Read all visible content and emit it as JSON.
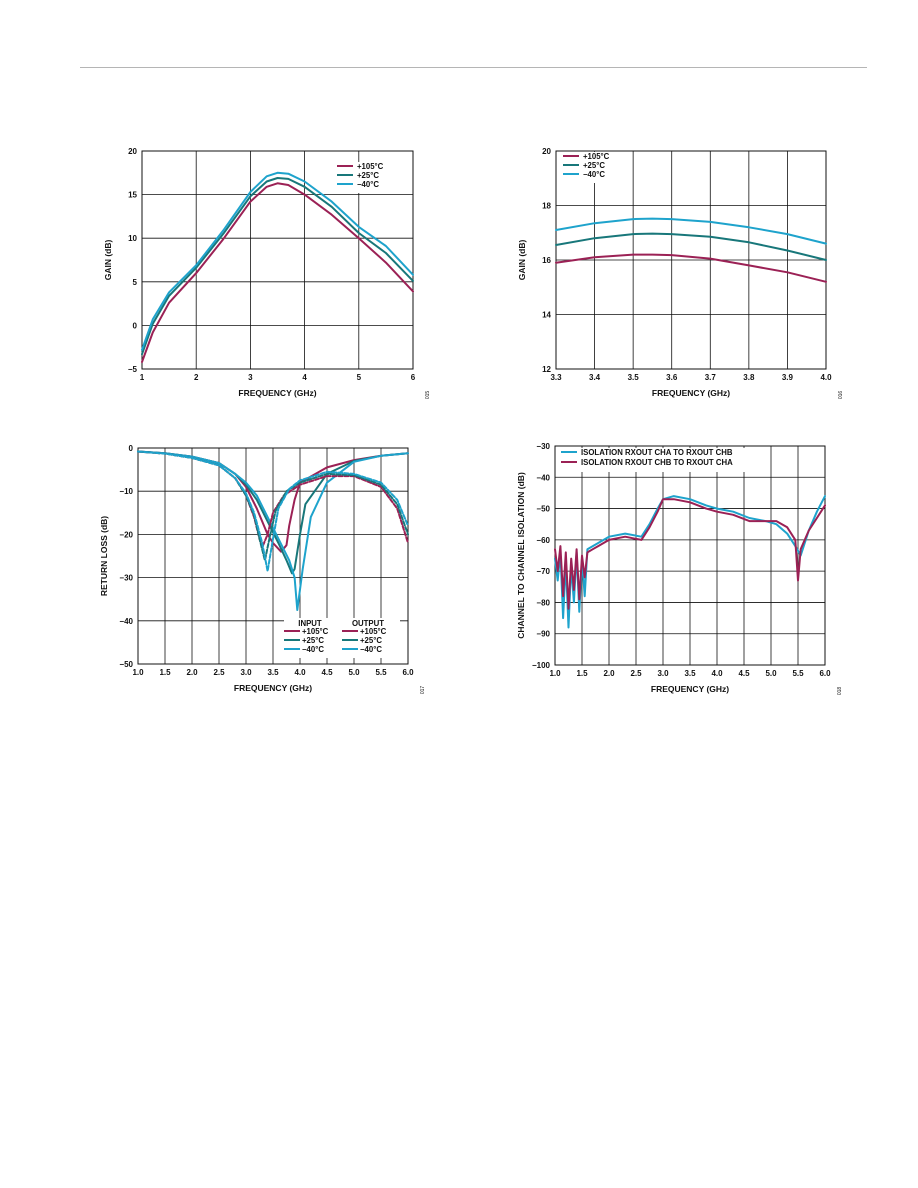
{
  "palette": {
    "hot": "#9b2155",
    "room": "#18777a",
    "cold": "#1ea3cc",
    "grid": "#111111"
  },
  "chart_data": [
    {
      "id": "gain-wide",
      "type": "line",
      "figure_id": "015",
      "xlabel": "FREQUENCY (GHz)",
      "ylabel": "GAIN (dB)",
      "xlim": [
        1,
        6
      ],
      "ylim": [
        -5,
        20
      ],
      "xticks": [
        1,
        2,
        3,
        4,
        5,
        6
      ],
      "yticks": [
        -5,
        0,
        5,
        10,
        15,
        20
      ],
      "xtick_labels": [
        "1",
        "2",
        "3",
        "4",
        "5",
        "6"
      ],
      "ytick_labels": [
        "−5",
        "0",
        "5",
        "10",
        "15",
        "20"
      ],
      "grid": true,
      "legend": "top-right",
      "series": [
        {
          "name": "+105°C",
          "color": "hot",
          "x": [
            1,
            1.2,
            1.5,
            2,
            2.5,
            3,
            3.3,
            3.5,
            3.7,
            4,
            4.5,
            5,
            5.5,
            6
          ],
          "y": [
            -4.2,
            -0.8,
            2.6,
            6.0,
            9.9,
            14.2,
            15.9,
            16.3,
            16.1,
            15.0,
            12.7,
            10.0,
            7.2,
            3.9
          ]
        },
        {
          "name": "+25°C",
          "color": "room",
          "x": [
            1,
            1.2,
            1.5,
            2,
            2.5,
            3,
            3.3,
            3.5,
            3.7,
            4,
            4.5,
            5,
            5.5,
            6
          ],
          "y": [
            -3.3,
            0.2,
            3.4,
            6.6,
            10.5,
            14.8,
            16.5,
            16.9,
            16.8,
            15.9,
            13.6,
            10.6,
            8.3,
            5.1
          ]
        },
        {
          "name": "−40°C",
          "color": "cold",
          "x": [
            1,
            1.2,
            1.5,
            2,
            2.5,
            3,
            3.3,
            3.5,
            3.7,
            4,
            4.5,
            5,
            5.5,
            6
          ],
          "y": [
            -2.8,
            0.7,
            3.8,
            6.9,
            10.9,
            15.3,
            17.1,
            17.5,
            17.4,
            16.5,
            14.2,
            11.3,
            9.1,
            5.8
          ]
        }
      ]
    },
    {
      "id": "gain-band",
      "type": "line",
      "figure_id": "016",
      "xlabel": "FREQUENCY (GHz)",
      "ylabel": "GAIN (dB)",
      "xlim": [
        3.3,
        4.0
      ],
      "ylim": [
        12,
        20
      ],
      "xticks": [
        3.3,
        3.4,
        3.5,
        3.6,
        3.7,
        3.8,
        3.9,
        4.0
      ],
      "yticks": [
        12,
        14,
        16,
        18,
        20
      ],
      "xtick_labels": [
        "3.3",
        "3.4",
        "3.5",
        "3.6",
        "3.7",
        "3.8",
        "3.9",
        "4.0"
      ],
      "ytick_labels": [
        "12",
        "14",
        "16",
        "18",
        "20"
      ],
      "grid": true,
      "legend": "top-left",
      "series": [
        {
          "name": "+105°C",
          "color": "hot",
          "x": [
            3.3,
            3.4,
            3.5,
            3.55,
            3.6,
            3.7,
            3.8,
            3.9,
            4.0
          ],
          "y": [
            15.9,
            16.1,
            16.2,
            16.2,
            16.18,
            16.05,
            15.8,
            15.55,
            15.2
          ]
        },
        {
          "name": "+25°C",
          "color": "room",
          "x": [
            3.3,
            3.4,
            3.5,
            3.55,
            3.6,
            3.7,
            3.8,
            3.9,
            4.0
          ],
          "y": [
            16.55,
            16.8,
            16.95,
            16.97,
            16.95,
            16.85,
            16.65,
            16.35,
            16.0
          ]
        },
        {
          "name": "−40°C",
          "color": "cold",
          "x": [
            3.3,
            3.4,
            3.5,
            3.55,
            3.6,
            3.7,
            3.8,
            3.9,
            4.0
          ],
          "y": [
            17.1,
            17.35,
            17.5,
            17.52,
            17.5,
            17.4,
            17.2,
            16.95,
            16.6
          ]
        }
      ]
    },
    {
      "id": "return-loss",
      "type": "line",
      "figure_id": "017",
      "xlabel": "FREQUENCY (GHz)",
      "ylabel": "RETURN LOSS (dB)",
      "xlim": [
        1.0,
        6.0
      ],
      "ylim": [
        -50,
        0
      ],
      "xticks": [
        1.0,
        1.5,
        2.0,
        2.5,
        3.0,
        3.5,
        4.0,
        4.5,
        5.0,
        5.5,
        6.0
      ],
      "yticks": [
        -50,
        -40,
        -30,
        -20,
        -10,
        0
      ],
      "xtick_labels": [
        "1.0",
        "1.5",
        "2.0",
        "2.5",
        "3.0",
        "3.5",
        "4.0",
        "4.5",
        "5.0",
        "5.5",
        "6.0"
      ],
      "ytick_labels": [
        "−50",
        "−40",
        "−30",
        "−20",
        "−10",
        "0"
      ],
      "grid": true,
      "legend": "bottom-right",
      "legend_group_titles": [
        "INPUT",
        "OUTPUT"
      ],
      "series": [
        {
          "name": "+105°C",
          "group": "INPUT",
          "color": "hot",
          "x": [
            1.0,
            1.5,
            2.0,
            2.5,
            2.8,
            3.0,
            3.2,
            3.4,
            3.5,
            3.65,
            3.75,
            3.8,
            3.9,
            4.0,
            4.5,
            5.0,
            5.5,
            6.0
          ],
          "y": [
            -0.8,
            -1.2,
            -2.0,
            -3.5,
            -6.0,
            -9.0,
            -14.0,
            -20.0,
            -22.0,
            -24.0,
            -22.5,
            -18.0,
            -12.0,
            -8.0,
            -4.5,
            -2.8,
            -1.8,
            -1.2
          ]
        },
        {
          "name": "+25°C",
          "group": "INPUT",
          "color": "room",
          "x": [
            1.0,
            1.5,
            2.0,
            2.5,
            2.8,
            3.0,
            3.2,
            3.4,
            3.6,
            3.75,
            3.85,
            3.9,
            4.0,
            4.1,
            4.5,
            5.0,
            5.5,
            6.0
          ],
          "y": [
            -0.8,
            -1.2,
            -2.0,
            -3.5,
            -6.0,
            -8.5,
            -12.0,
            -17.0,
            -22.0,
            -26.0,
            -29.0,
            -28.0,
            -20.0,
            -13.0,
            -6.0,
            -3.0,
            -1.8,
            -1.2
          ]
        },
        {
          "name": "−40°C",
          "group": "INPUT",
          "color": "cold",
          "x": [
            1.0,
            1.5,
            2.0,
            2.5,
            2.8,
            3.0,
            3.2,
            3.4,
            3.6,
            3.8,
            3.9,
            3.95,
            4.05,
            4.2,
            4.5,
            5.0,
            5.5,
            6.0
          ],
          "y": [
            -0.8,
            -1.2,
            -2.0,
            -3.5,
            -6.0,
            -8.0,
            -11.0,
            -16.0,
            -21.0,
            -26.0,
            -30.0,
            -37.5,
            -28.0,
            -16.0,
            -8.0,
            -3.2,
            -1.8,
            -1.2
          ]
        },
        {
          "name": "+105°C",
          "group": "OUTPUT",
          "color": "hot",
          "dashed": true,
          "x": [
            1.0,
            1.5,
            2.0,
            2.5,
            2.8,
            3.0,
            3.15,
            3.25,
            3.3,
            3.4,
            3.5,
            3.7,
            4.0,
            4.5,
            5.0,
            5.5,
            5.8,
            6.0
          ],
          "y": [
            -0.8,
            -1.3,
            -2.3,
            -4.0,
            -7.0,
            -11.0,
            -16.0,
            -21.0,
            -23.0,
            -20.0,
            -15.0,
            -11.0,
            -8.5,
            -6.5,
            -6.5,
            -9.0,
            -14.0,
            -22.0
          ]
        },
        {
          "name": "+25°C",
          "group": "OUTPUT",
          "color": "room",
          "dashed": true,
          "x": [
            1.0,
            1.5,
            2.0,
            2.5,
            2.8,
            3.0,
            3.15,
            3.25,
            3.35,
            3.45,
            3.55,
            3.75,
            4.0,
            4.5,
            5.0,
            5.5,
            5.8,
            6.0
          ],
          "y": [
            -0.8,
            -1.3,
            -2.3,
            -4.0,
            -7.0,
            -11.0,
            -15.5,
            -21.0,
            -26.0,
            -20.0,
            -14.5,
            -10.0,
            -8.0,
            -6.0,
            -6.3,
            -8.5,
            -13.0,
            -20.0
          ]
        },
        {
          "name": "−40°C",
          "group": "OUTPUT",
          "color": "cold",
          "dashed": true,
          "x": [
            1.0,
            1.5,
            2.0,
            2.5,
            2.8,
            3.0,
            3.15,
            3.3,
            3.4,
            3.5,
            3.6,
            3.8,
            4.0,
            4.5,
            5.0,
            5.5,
            5.8,
            6.0
          ],
          "y": [
            -0.8,
            -1.3,
            -2.3,
            -4.0,
            -7.0,
            -10.5,
            -15.0,
            -22.0,
            -28.5,
            -21.0,
            -14.0,
            -9.5,
            -7.5,
            -5.5,
            -6.0,
            -8.0,
            -12.0,
            -18.0
          ]
        }
      ]
    },
    {
      "id": "isolation",
      "type": "line",
      "figure_id": "018",
      "xlabel": "FREQUENCY (GHz)",
      "ylabel": "CHANNEL TO CHANNEL ISOLATION (dB)",
      "xlim": [
        1.0,
        6.0
      ],
      "ylim": [
        -100,
        -30
      ],
      "xticks": [
        1.0,
        1.5,
        2.0,
        2.5,
        3.0,
        3.5,
        4.0,
        4.5,
        5.0,
        5.5,
        6.0
      ],
      "yticks": [
        -100,
        -90,
        -80,
        -70,
        -60,
        -50,
        -40,
        -30
      ],
      "xtick_labels": [
        "1.0",
        "1.5",
        "2.0",
        "2.5",
        "3.0",
        "3.5",
        "4.0",
        "4.5",
        "5.0",
        "5.5",
        "6.0"
      ],
      "ytick_labels": [
        "−100",
        "−90",
        "−80",
        "−70",
        "−60",
        "−50",
        "−40",
        "−30"
      ],
      "grid": true,
      "legend": "top-left",
      "series": [
        {
          "name": "ISOLATION RXOUT CHA TO RXOUT CHB",
          "color": "cold",
          "x": [
            1.0,
            1.05,
            1.1,
            1.15,
            1.2,
            1.25,
            1.3,
            1.35,
            1.4,
            1.45,
            1.5,
            1.55,
            1.6,
            1.7,
            1.8,
            2.0,
            2.3,
            2.6,
            2.75,
            2.9,
            3.0,
            3.2,
            3.5,
            3.8,
            4.0,
            4.3,
            4.6,
            4.9,
            5.1,
            5.3,
            5.45,
            5.55,
            5.7,
            5.85,
            6.0
          ],
          "y": [
            -66,
            -73,
            -64,
            -85,
            -67,
            -88,
            -68,
            -80,
            -64,
            -83,
            -66,
            -78,
            -63,
            -62,
            -61,
            -59,
            -58,
            -59,
            -55,
            -50,
            -47,
            -46,
            -47,
            -49,
            -50,
            -51,
            -53,
            -54,
            -55,
            -58,
            -62,
            -65,
            -57,
            -51,
            -46
          ]
        },
        {
          "name": "ISOLATION RXOUT CHB TO RXOUT CHA",
          "color": "hot",
          "x": [
            1.0,
            1.05,
            1.1,
            1.15,
            1.2,
            1.25,
            1.3,
            1.35,
            1.4,
            1.45,
            1.5,
            1.55,
            1.6,
            1.7,
            1.8,
            2.0,
            2.3,
            2.6,
            2.75,
            2.9,
            3.0,
            3.2,
            3.5,
            3.8,
            4.0,
            4.3,
            4.6,
            4.9,
            5.1,
            5.3,
            5.45,
            5.5,
            5.55,
            5.7,
            5.85,
            6.0
          ],
          "y": [
            -63,
            -70,
            -62,
            -78,
            -64,
            -82,
            -66,
            -76,
            -63,
            -79,
            -65,
            -72,
            -64,
            -63,
            -62,
            -60,
            -59,
            -60,
            -56,
            -51,
            -47,
            -47,
            -48,
            -50,
            -51,
            -52,
            -54,
            -54,
            -54,
            -56,
            -60,
            -73,
            -63,
            -57,
            -53,
            -49
          ]
        }
      ]
    }
  ]
}
